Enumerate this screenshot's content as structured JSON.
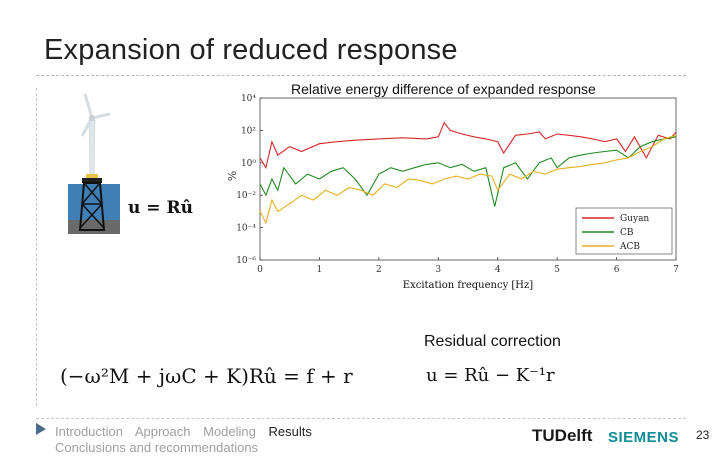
{
  "slide": {
    "title": "Expansion of reduced response",
    "page_number": "23"
  },
  "equations": {
    "projection": "u = Rû",
    "residual_title": "Residual correction",
    "equation_of_motion": "(−ω²M + jωC + K)Rû = f + r",
    "corrected": "u = Rû − K⁻¹r"
  },
  "nav": {
    "items": [
      "Introduction",
      "Approach",
      "Modeling",
      "Results",
      "Conclusions and recommendations"
    ],
    "active": "Results"
  },
  "logos": {
    "tudelft_tu": "TU",
    "tudelft_text": "Delft",
    "siemens": "SIEMENS"
  },
  "colors": {
    "guyan": "#d62728",
    "cb": "#228b22",
    "acb": "#e6b020",
    "siemens": "#0f8c94"
  },
  "chart_data": {
    "type": "line",
    "title": "Relative energy difference of expanded response",
    "xlabel": "Excitation frequency [Hz]",
    "ylabel": "%",
    "xlim": [
      0,
      7
    ],
    "ylim": [
      1e-06,
      10000
    ],
    "yscale": "log",
    "xticks": [
      "0",
      "1",
      "2",
      "3",
      "4",
      "5",
      "6",
      "7"
    ],
    "yticks": [
      "10⁻⁶",
      "10⁻⁴",
      "10⁻²",
      "10⁰",
      "10²",
      "10⁴"
    ],
    "grid": false,
    "legend_position": "bottom-right",
    "series": [
      {
        "name": "Guyan",
        "x": [
          0.0,
          0.1,
          0.2,
          0.3,
          0.5,
          0.7,
          1.0,
          1.3,
          1.6,
          2.0,
          2.4,
          2.8,
          3.0,
          3.1,
          3.2,
          3.4,
          3.6,
          3.8,
          4.0,
          4.1,
          4.3,
          4.5,
          4.7,
          4.8,
          5.0,
          5.2,
          5.4,
          5.6,
          5.8,
          6.0,
          6.15,
          6.3,
          6.5,
          6.7,
          6.9,
          7.0
        ],
        "y": [
          2,
          0.5,
          20,
          3,
          10,
          5,
          15,
          20,
          25,
          30,
          35,
          30,
          40,
          300,
          100,
          60,
          40,
          30,
          20,
          4,
          50,
          60,
          80,
          30,
          60,
          50,
          40,
          30,
          20,
          30,
          5,
          40,
          2,
          50,
          30,
          80
        ]
      },
      {
        "name": "CB",
        "x": [
          0.0,
          0.1,
          0.2,
          0.3,
          0.4,
          0.6,
          0.8,
          1.0,
          1.2,
          1.4,
          1.6,
          1.8,
          2.0,
          2.2,
          2.4,
          2.6,
          2.8,
          3.0,
          3.2,
          3.4,
          3.6,
          3.8,
          3.95,
          4.1,
          4.3,
          4.5,
          4.7,
          4.9,
          5.0,
          5.2,
          5.4,
          5.6,
          5.8,
          6.0,
          6.2,
          6.4,
          6.6,
          6.8,
          7.0
        ],
        "y": [
          0.05,
          0.01,
          0.1,
          0.02,
          0.5,
          0.05,
          0.2,
          0.1,
          0.3,
          0.5,
          0.1,
          0.01,
          0.2,
          0.5,
          0.3,
          0.5,
          0.8,
          1,
          0.5,
          0.8,
          0.3,
          0.5,
          0.002,
          0.5,
          1,
          0.1,
          1,
          2,
          0.5,
          2,
          3,
          4,
          5,
          6,
          2,
          10,
          20,
          30,
          40
        ]
      },
      {
        "name": "ACB",
        "x": [
          0.0,
          0.1,
          0.2,
          0.3,
          0.5,
          0.7,
          0.9,
          1.1,
          1.3,
          1.5,
          1.7,
          1.9,
          2.1,
          2.3,
          2.5,
          2.7,
          2.9,
          3.1,
          3.3,
          3.5,
          3.7,
          3.9,
          4.0,
          4.2,
          4.4,
          4.6,
          4.8,
          5.0,
          5.2,
          5.4,
          5.6,
          5.8,
          6.0,
          6.2,
          6.4,
          6.6,
          6.8,
          7.0
        ],
        "y": [
          0.001,
          0.0002,
          0.005,
          0.001,
          0.003,
          0.01,
          0.005,
          0.02,
          0.01,
          0.03,
          0.02,
          0.01,
          0.05,
          0.03,
          0.1,
          0.08,
          0.05,
          0.1,
          0.15,
          0.1,
          0.2,
          0.15,
          0.02,
          0.2,
          0.1,
          0.3,
          0.2,
          0.4,
          0.5,
          0.6,
          0.8,
          1,
          1.5,
          2,
          5,
          10,
          30,
          50
        ]
      }
    ]
  }
}
